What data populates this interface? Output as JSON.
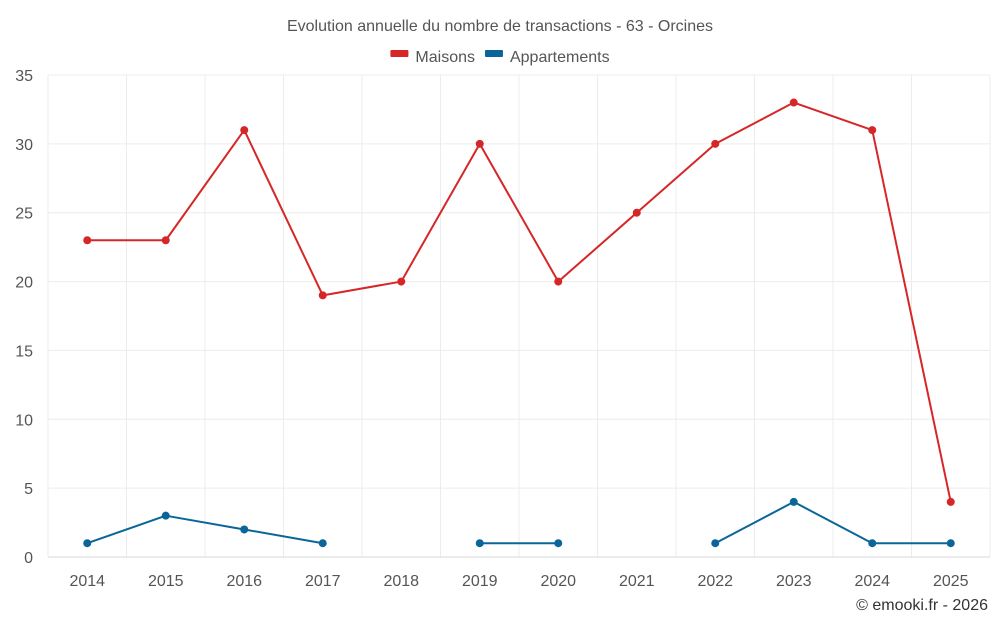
{
  "chart_data": {
    "type": "line",
    "title": "Evolution annuelle du nombre de transactions - 63 - Orcines",
    "xlabel": "",
    "ylabel": "",
    "ylim": [
      0,
      35
    ],
    "yticks": [
      0,
      5,
      10,
      15,
      20,
      25,
      30,
      35
    ],
    "categories": [
      "2014",
      "2015",
      "2016",
      "2017",
      "2018",
      "2019",
      "2020",
      "2021",
      "2022",
      "2023",
      "2024",
      "2025"
    ],
    "series": [
      {
        "name": "Maisons",
        "color": "#d62728",
        "values": [
          23,
          23,
          31,
          19,
          20,
          30,
          20,
          25,
          30,
          33,
          31,
          4
        ]
      },
      {
        "name": "Appartements",
        "color": "#0a6699",
        "values": [
          1,
          3,
          2,
          1,
          null,
          1,
          1,
          null,
          1,
          4,
          1,
          1
        ]
      }
    ],
    "legend_position": "top-center",
    "grid": true
  },
  "credit": "© emooki.fr - 2026"
}
